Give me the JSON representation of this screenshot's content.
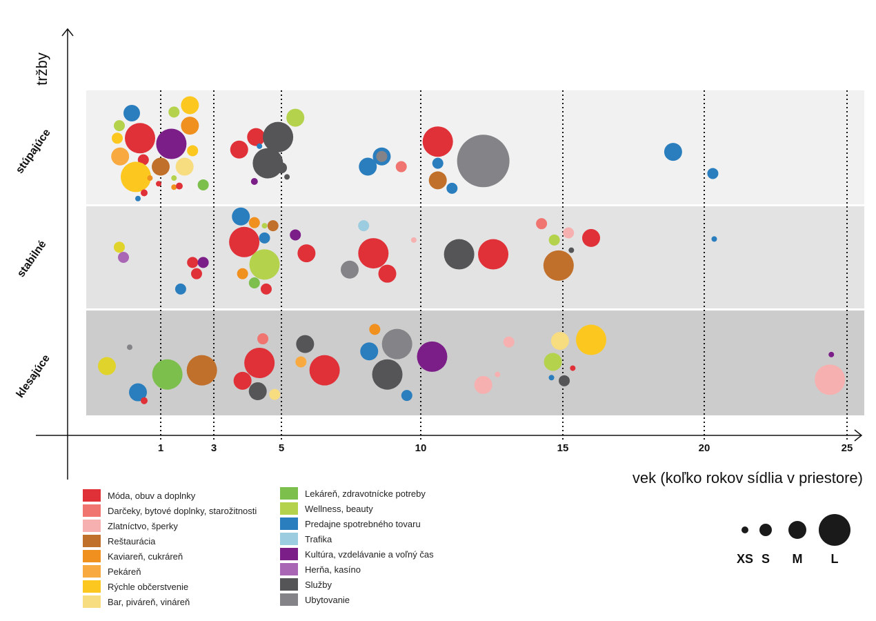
{
  "chart_data": {
    "type": "scatter",
    "subtype": "bubble",
    "ylabel": "tržby",
    "xlabel": "vek (koľko rokov sídlia v priestore)",
    "x_ticks": [
      1,
      3,
      5,
      10,
      15,
      20,
      25
    ],
    "x_tick_labels": [
      "1",
      "3",
      "5",
      "10",
      "15",
      "20",
      "25"
    ],
    "x_scale_note": "non-linear piecewise axis",
    "y_categories": [
      "stúpajúce",
      "stabilné",
      "klesajúce"
    ],
    "size_legend": [
      {
        "key": "XS",
        "label": "XS"
      },
      {
        "key": "S",
        "label": "S"
      },
      {
        "key": "M",
        "label": "M"
      },
      {
        "key": "L",
        "label": "L"
      }
    ],
    "categories": [
      {
        "id": "moda",
        "label": "Móda, obuv a doplnky",
        "color": "#e03038"
      },
      {
        "id": "darceky",
        "label": "Darčeky, bytové doplnky, starožitnosti",
        "color": "#f07470"
      },
      {
        "id": "zlat",
        "label": "Zlatníctvo, šperky",
        "color": "#f7b0b0"
      },
      {
        "id": "rest",
        "label": "Reštaurácia",
        "color": "#c0702a"
      },
      {
        "id": "kav",
        "label": "Kaviareň, cukráreň",
        "color": "#f0901e"
      },
      {
        "id": "pek",
        "label": "Pekáreň",
        "color": "#f8aa40"
      },
      {
        "id": "rych",
        "label": "Rýchle občerstvenie",
        "color": "#fcc820"
      },
      {
        "id": "bar",
        "label": "Bar, piváreň, vináreň",
        "color": "#f8dc80"
      },
      {
        "id": "lek",
        "label": "Lekáreň, zdravotnícke potreby",
        "color": "#7cbf4c"
      },
      {
        "id": "well",
        "label": "Wellness, beauty",
        "color": "#b4d24c"
      },
      {
        "id": "pred",
        "label": "Predajne spotrebného tovaru",
        "color": "#2a7ebe"
      },
      {
        "id": "traf",
        "label": "Trafika",
        "color": "#9ccce0"
      },
      {
        "id": "kult",
        "label": "Kultúra, vzdelávanie a voľný čas",
        "color": "#7c1e88"
      },
      {
        "id": "hern",
        "label": "Herňa, kasíno",
        "color": "#a866b4"
      },
      {
        "id": "sluz",
        "label": "Služby",
        "color": "#555558"
      },
      {
        "id": "ubyt",
        "label": "Ubytovanie",
        "color": "#848488"
      },
      {
        "id": "yel",
        "label": "",
        "color": "#e0d42c"
      }
    ],
    "points": [
      {
        "band": "stúpajúce",
        "x": 0.3,
        "y": 0.2,
        "cat": "pred",
        "size": 12
      },
      {
        "band": "stúpajúce",
        "x": 0.0,
        "y": 0.31,
        "cat": "well",
        "size": 8
      },
      {
        "band": "stúpajúce",
        "x": -0.05,
        "y": 0.42,
        "cat": "rych",
        "size": 8
      },
      {
        "band": "stúpajúce",
        "x": 0.5,
        "y": 0.42,
        "cat": "moda",
        "size": 22
      },
      {
        "band": "stúpajúce",
        "x": 0.02,
        "y": 0.58,
        "cat": "pek",
        "size": 13
      },
      {
        "band": "stúpajúce",
        "x": 0.58,
        "y": 0.61,
        "cat": "moda",
        "size": 8
      },
      {
        "band": "stúpajúce",
        "x": 0.4,
        "y": 0.76,
        "cat": "rych",
        "size": 22
      },
      {
        "band": "stúpajúce",
        "x": 1.4,
        "y": 0.47,
        "cat": "kult",
        "size": 22
      },
      {
        "band": "stúpajúce",
        "x": 1.0,
        "y": 0.67,
        "cat": "rest",
        "size": 13
      },
      {
        "band": "stúpajúce",
        "x": 1.5,
        "y": 0.19,
        "cat": "well",
        "size": 8
      },
      {
        "band": "stúpajúce",
        "x": 2.1,
        "y": 0.13,
        "cat": "rych",
        "size": 13
      },
      {
        "band": "stúpajúce",
        "x": 2.1,
        "y": 0.31,
        "cat": "kav",
        "size": 13
      },
      {
        "band": "stúpajúce",
        "x": 2.2,
        "y": 0.53,
        "cat": "rych",
        "size": 8
      },
      {
        "band": "stúpajúce",
        "x": 1.9,
        "y": 0.67,
        "cat": "bar",
        "size": 13
      },
      {
        "band": "stúpajúce",
        "x": 2.6,
        "y": 0.83,
        "cat": "lek",
        "size": 8
      },
      {
        "band": "stúpajúce",
        "x": 0.74,
        "y": 0.77,
        "cat": "kav",
        "size": 4
      },
      {
        "band": "stúpajúce",
        "x": 0.95,
        "y": 0.82,
        "cat": "moda",
        "size": 4
      },
      {
        "band": "stúpajúce",
        "x": 1.5,
        "y": 0.77,
        "cat": "well",
        "size": 4
      },
      {
        "band": "stúpajúce",
        "x": 1.5,
        "y": 0.85,
        "cat": "kav",
        "size": 4
      },
      {
        "band": "stúpajúce",
        "x": 1.7,
        "y": 0.84,
        "cat": "moda",
        "size": 5
      },
      {
        "band": "stúpajúce",
        "x": 0.6,
        "y": 0.9,
        "cat": "moda",
        "size": 5
      },
      {
        "band": "stúpajúce",
        "x": 0.45,
        "y": 0.95,
        "cat": "pred",
        "size": 4
      },
      {
        "band": "stúpajúce",
        "x": 3.75,
        "y": 0.52,
        "cat": "moda",
        "size": 13
      },
      {
        "band": "stúpajúce",
        "x": 4.25,
        "y": 0.41,
        "cat": "moda",
        "size": 13
      },
      {
        "band": "stúpajúce",
        "x": 4.35,
        "y": 0.49,
        "cat": "pred",
        "size": 4
      },
      {
        "band": "stúpajúce",
        "x": 4.9,
        "y": 0.41,
        "cat": "sluz",
        "size": 22
      },
      {
        "band": "stúpajúce",
        "x": 4.6,
        "y": 0.64,
        "cat": "sluz",
        "size": 22
      },
      {
        "band": "stúpajúce",
        "x": 5.0,
        "y": 0.68,
        "cat": "sluz",
        "size": 8
      },
      {
        "band": "stúpajúce",
        "x": 5.2,
        "y": 0.76,
        "cat": "sluz",
        "size": 4
      },
      {
        "band": "stúpajúce",
        "x": 4.2,
        "y": 0.8,
        "cat": "kult",
        "size": 5
      },
      {
        "band": "stúpajúce",
        "x": 5.5,
        "y": 0.24,
        "cat": "well",
        "size": 13
      },
      {
        "band": "stúpajúce",
        "x": 8.6,
        "y": 0.58,
        "cat": "pred",
        "size": 13
      },
      {
        "band": "stúpajúce",
        "x": 8.6,
        "y": 0.58,
        "cat": "pred",
        "size": 0
      },
      {
        "band": "stúpajúce",
        "x": 8.1,
        "y": 0.67,
        "cat": "pred",
        "size": 13
      },
      {
        "band": "stúpajúce",
        "x": 8.6,
        "y": 0.58,
        "cat": "ubyt",
        "size": 8
      },
      {
        "band": "stúpajúce",
        "x": 9.3,
        "y": 0.67,
        "cat": "darceky",
        "size": 8
      },
      {
        "band": "stúpajúce",
        "x": 10.6,
        "y": 0.45,
        "cat": "moda",
        "size": 22
      },
      {
        "band": "stúpajúce",
        "x": 10.6,
        "y": 0.64,
        "cat": "pred",
        "size": 8
      },
      {
        "band": "stúpajúce",
        "x": 10.6,
        "y": 0.79,
        "cat": "rest",
        "size": 13
      },
      {
        "band": "stúpajúce",
        "x": 11.1,
        "y": 0.86,
        "cat": "pred",
        "size": 8
      },
      {
        "band": "stúpajúce",
        "x": 12.2,
        "y": 0.62,
        "cat": "ubyt",
        "size": 38
      },
      {
        "band": "stúpajúce",
        "x": 18.9,
        "y": 0.54,
        "cat": "pred",
        "size": 13
      },
      {
        "band": "stúpajúce",
        "x": 20.3,
        "y": 0.73,
        "cat": "pred",
        "size": 8
      },
      {
        "band": "stabilné",
        "x": 0.0,
        "y": 0.4,
        "cat": "yel",
        "size": 8
      },
      {
        "band": "stabilné",
        "x": 0.1,
        "y": 0.5,
        "cat": "hern",
        "size": 8
      },
      {
        "band": "stabilné",
        "x": 2.2,
        "y": 0.55,
        "cat": "moda",
        "size": 8
      },
      {
        "band": "stabilné",
        "x": 2.6,
        "y": 0.55,
        "cat": "kult",
        "size": 8
      },
      {
        "band": "stabilné",
        "x": 2.35,
        "y": 0.66,
        "cat": "moda",
        "size": 8
      },
      {
        "band": "stabilné",
        "x": 1.75,
        "y": 0.81,
        "cat": "pred",
        "size": 8
      },
      {
        "band": "stabilné",
        "x": 3.8,
        "y": 0.1,
        "cat": "pred",
        "size": 13
      },
      {
        "band": "stabilné",
        "x": 4.2,
        "y": 0.16,
        "cat": "kav",
        "size": 8
      },
      {
        "band": "stabilné",
        "x": 4.5,
        "y": 0.19,
        "cat": "well",
        "size": 4
      },
      {
        "band": "stabilné",
        "x": 4.75,
        "y": 0.19,
        "cat": "rest",
        "size": 8
      },
      {
        "band": "stabilné",
        "x": 4.5,
        "y": 0.31,
        "cat": "pred",
        "size": 8
      },
      {
        "band": "stabilné",
        "x": 3.9,
        "y": 0.35,
        "cat": "moda",
        "size": 22
      },
      {
        "band": "stabilné",
        "x": 4.5,
        "y": 0.57,
        "cat": "well",
        "size": 22
      },
      {
        "band": "stabilné",
        "x": 3.85,
        "y": 0.66,
        "cat": "kav",
        "size": 8
      },
      {
        "band": "stabilné",
        "x": 4.2,
        "y": 0.75,
        "cat": "lek",
        "size": 8
      },
      {
        "band": "stabilné",
        "x": 4.55,
        "y": 0.81,
        "cat": "moda",
        "size": 8
      },
      {
        "band": "stabilné",
        "x": 5.5,
        "y": 0.28,
        "cat": "kult",
        "size": 8
      },
      {
        "band": "stabilné",
        "x": 5.9,
        "y": 0.46,
        "cat": "moda",
        "size": 13
      },
      {
        "band": "stabilné",
        "x": 7.95,
        "y": 0.19,
        "cat": "traf",
        "size": 8
      },
      {
        "band": "stabilné",
        "x": 8.3,
        "y": 0.46,
        "cat": "moda",
        "size": 22
      },
      {
        "band": "stabilné",
        "x": 7.45,
        "y": 0.62,
        "cat": "ubyt",
        "size": 13
      },
      {
        "band": "stabilné",
        "x": 8.8,
        "y": 0.66,
        "cat": "moda",
        "size": 13
      },
      {
        "band": "stabilné",
        "x": 9.75,
        "y": 0.33,
        "cat": "zlat",
        "size": 4
      },
      {
        "band": "stabilné",
        "x": 11.35,
        "y": 0.47,
        "cat": "sluz",
        "size": 22
      },
      {
        "band": "stabilné",
        "x": 12.55,
        "y": 0.47,
        "cat": "moda",
        "size": 22
      },
      {
        "band": "stabilné",
        "x": 14.25,
        "y": 0.17,
        "cat": "darceky",
        "size": 8
      },
      {
        "band": "stabilné",
        "x": 15.2,
        "y": 0.26,
        "cat": "zlat",
        "size": 8
      },
      {
        "band": "stabilné",
        "x": 14.7,
        "y": 0.33,
        "cat": "well",
        "size": 8
      },
      {
        "band": "stabilné",
        "x": 15.3,
        "y": 0.43,
        "cat": "sluz",
        "size": 4
      },
      {
        "band": "stabilné",
        "x": 16.0,
        "y": 0.31,
        "cat": "moda",
        "size": 13
      },
      {
        "band": "stabilné",
        "x": 14.85,
        "y": 0.58,
        "cat": "rest",
        "size": 22
      },
      {
        "band": "stabilné",
        "x": 20.35,
        "y": 0.32,
        "cat": "pred",
        "size": 4
      },
      {
        "band": "klesajúce",
        "x": -0.3,
        "y": 0.53,
        "cat": "yel",
        "size": 13
      },
      {
        "band": "klesajúce",
        "x": 0.25,
        "y": 0.35,
        "cat": "ubyt",
        "size": 4
      },
      {
        "band": "klesajúce",
        "x": 0.45,
        "y": 0.78,
        "cat": "pred",
        "size": 13
      },
      {
        "band": "klesajúce",
        "x": 0.6,
        "y": 0.86,
        "cat": "moda",
        "size": 5
      },
      {
        "band": "klesajúce",
        "x": 1.25,
        "y": 0.61,
        "cat": "lek",
        "size": 22
      },
      {
        "band": "klesajúce",
        "x": 2.55,
        "y": 0.57,
        "cat": "rest",
        "size": 22
      },
      {
        "band": "klesajúce",
        "x": 4.45,
        "y": 0.27,
        "cat": "darceky",
        "size": 8
      },
      {
        "band": "klesajúce",
        "x": 4.35,
        "y": 0.5,
        "cat": "moda",
        "size": 22
      },
      {
        "band": "klesajúce",
        "x": 3.85,
        "y": 0.67,
        "cat": "moda",
        "size": 13
      },
      {
        "band": "klesajúce",
        "x": 4.3,
        "y": 0.77,
        "cat": "sluz",
        "size": 13
      },
      {
        "band": "klesajúce",
        "x": 4.8,
        "y": 0.8,
        "cat": "bar",
        "size": 8
      },
      {
        "band": "klesajúce",
        "x": 5.85,
        "y": 0.32,
        "cat": "sluz",
        "size": 13
      },
      {
        "band": "klesajúce",
        "x": 5.7,
        "y": 0.49,
        "cat": "pek",
        "size": 8
      },
      {
        "band": "klesajúce",
        "x": 6.55,
        "y": 0.57,
        "cat": "moda",
        "size": 22
      },
      {
        "band": "klesajúce",
        "x": 8.35,
        "y": 0.18,
        "cat": "kav",
        "size": 8
      },
      {
        "band": "klesajúce",
        "x": 8.15,
        "y": 0.39,
        "cat": "pred",
        "size": 13
      },
      {
        "band": "klesajúce",
        "x": 9.15,
        "y": 0.32,
        "cat": "ubyt",
        "size": 22
      },
      {
        "band": "klesajúce",
        "x": 8.8,
        "y": 0.61,
        "cat": "sluz",
        "size": 22
      },
      {
        "band": "klesajúce",
        "x": 9.5,
        "y": 0.81,
        "cat": "pred",
        "size": 8
      },
      {
        "band": "klesajúce",
        "x": 10.4,
        "y": 0.44,
        "cat": "kult",
        "size": 22
      },
      {
        "band": "klesajúce",
        "x": 13.1,
        "y": 0.3,
        "cat": "zlat",
        "size": 8
      },
      {
        "band": "klesajúce",
        "x": 12.7,
        "y": 0.61,
        "cat": "zlat",
        "size": 4
      },
      {
        "band": "klesajúce",
        "x": 12.2,
        "y": 0.71,
        "cat": "zlat",
        "size": 13
      },
      {
        "band": "klesajúce",
        "x": 14.9,
        "y": 0.29,
        "cat": "bar",
        "size": 13
      },
      {
        "band": "klesajúce",
        "x": 16.0,
        "y": 0.28,
        "cat": "rych",
        "size": 22
      },
      {
        "band": "klesajúce",
        "x": 14.65,
        "y": 0.49,
        "cat": "well",
        "size": 13
      },
      {
        "band": "klesajúce",
        "x": 15.35,
        "y": 0.55,
        "cat": "moda",
        "size": 4
      },
      {
        "band": "klesajúce",
        "x": 14.6,
        "y": 0.64,
        "cat": "pred",
        "size": 4
      },
      {
        "band": "klesajúce",
        "x": 15.05,
        "y": 0.67,
        "cat": "sluz",
        "size": 8
      },
      {
        "band": "klesajúce",
        "x": 24.45,
        "y": 0.42,
        "cat": "kult",
        "size": 4
      },
      {
        "band": "klesajúce",
        "x": 24.4,
        "y": 0.66,
        "cat": "zlat",
        "size": 22
      }
    ]
  },
  "legend": {
    "col1": [
      "Móda, obuv a doplnky",
      "Darčeky, bytové doplnky, starožitnosti",
      "Zlatníctvo, šperky",
      "Reštaurácia",
      "Kaviareň, cukráreň",
      "Pekáreň",
      "Rýchle občerstvenie",
      "Bar, piváreň, vináreň"
    ],
    "col2": [
      "Lekáreň, zdravotnícke potreby",
      "Wellness, beauty",
      "Predajne spotrebného tovaru",
      "Trafika",
      "Kultúra, vzdelávanie a voľný čas",
      "Herňa, kasíno",
      "Služby",
      "Ubytovanie"
    ]
  }
}
